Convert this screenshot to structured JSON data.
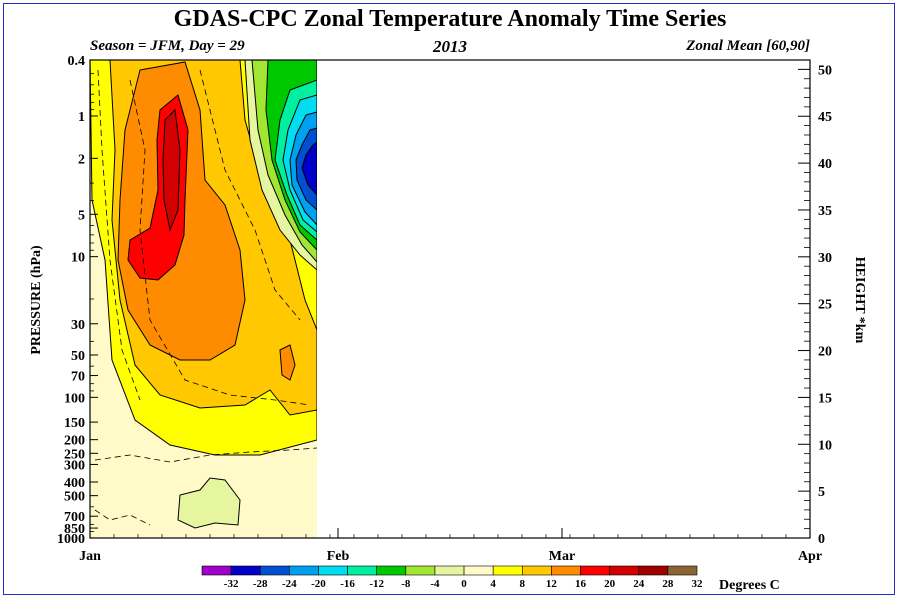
{
  "header": {
    "title": "GDAS-CPC Zonal Temperature Anomaly Time Series",
    "left": "Season = JFM, Day =  29",
    "center": "2013",
    "right": "Zonal Mean [60,90]"
  },
  "chart_data": {
    "type": "heatmap",
    "title": "GDAS-CPC Zonal Temperature Anomaly Time Series",
    "ylabel": "PRESSURE (hPa)",
    "y2label": "HEIGHT *km",
    "x_ticks": [
      "Jan",
      "Feb",
      "Mar",
      "Apr"
    ],
    "x_range_days": [
      1,
      90
    ],
    "data_through_day": 29,
    "y_ticks_pressure": [
      "0.4",
      "1",
      "2",
      "5",
      "10",
      "30",
      "50",
      "70",
      "100",
      "150",
      "200",
      "250",
      "300",
      "400",
      "500",
      "700",
      "850",
      "1000"
    ],
    "y_range_pressure": [
      1000,
      0.4
    ],
    "y_scale": "log",
    "y2_ticks_km": [
      "0",
      "5",
      "10",
      "15",
      "20",
      "25",
      "30",
      "35",
      "40",
      "45",
      "50"
    ],
    "colorbar": {
      "levels": [
        "-32",
        "-28",
        "-24",
        "-20",
        "-16",
        "-12",
        "-8",
        "-4",
        "0",
        "4",
        "8",
        "12",
        "16",
        "20",
        "24",
        "28",
        "32"
      ],
      "colors": [
        "#a000c8",
        "#0000c8",
        "#0050d2",
        "#00a0f0",
        "#00dcf0",
        "#00f0a0",
        "#00c800",
        "#a0e632",
        "#e6f5a0",
        "#fffac8",
        "#ffff00",
        "#ffc800",
        "#ff8c00",
        "#ff0000",
        "#d20000",
        "#a00000",
        "#8c6432"
      ],
      "label": "Degrees C"
    },
    "features": [
      {
        "name": "warm-anomaly-core",
        "approx_max": 28,
        "day_center": 6,
        "pressure_center": "2"
      },
      {
        "name": "cold-anomaly-core",
        "approx_min": -28,
        "day_center": 29,
        "pressure_center": "3"
      }
    ]
  }
}
